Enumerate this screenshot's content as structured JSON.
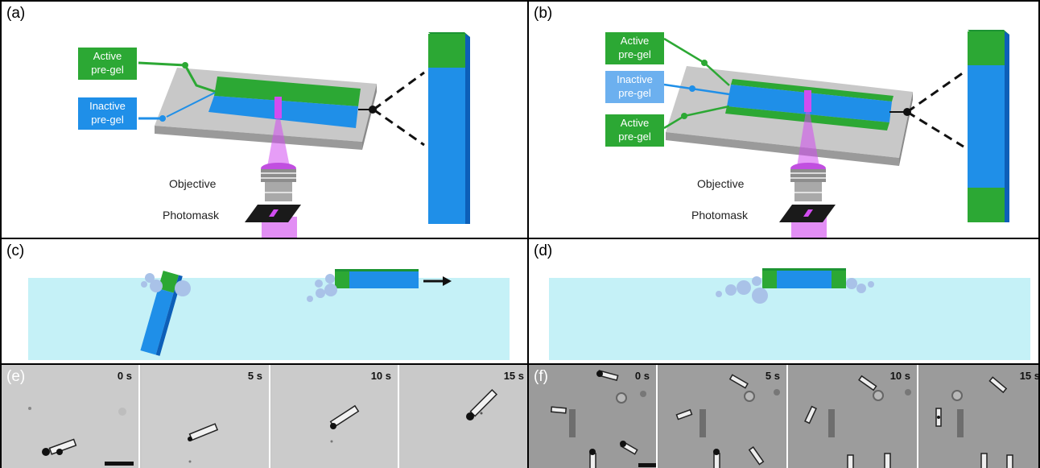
{
  "panel_a": {
    "label": "(a)",
    "active_tag": [
      "Active",
      "pre-gel"
    ],
    "inactive_tag": [
      "Inactive",
      "pre-gel"
    ],
    "objective": "Objective",
    "photomask": "Photomask"
  },
  "panel_b": {
    "label": "(b)",
    "active_tag_top": [
      "Active",
      "pre-gel"
    ],
    "inactive_tag": [
      "Inactive",
      "pre-gel"
    ],
    "active_tag_bottom": [
      "Active",
      "pre-gel"
    ],
    "objective": "Objective",
    "photomask": "Photomask"
  },
  "panel_c": {
    "label": "(c)"
  },
  "panel_d": {
    "label": "(d)"
  },
  "panel_e": {
    "label": "(e)",
    "times": [
      "0 s",
      "5 s",
      "10 s",
      "15 s"
    ]
  },
  "panel_f": {
    "label": "(f)",
    "times": [
      "0 s",
      "5 s",
      "10 s",
      "15 s"
    ]
  },
  "colors": {
    "active_green": "#2ca834",
    "inactive_blue": "#1f8fe8",
    "slide_gray": "#c8c8c8",
    "uv_violet": "#d24df0",
    "water": "#c5f1f7"
  }
}
